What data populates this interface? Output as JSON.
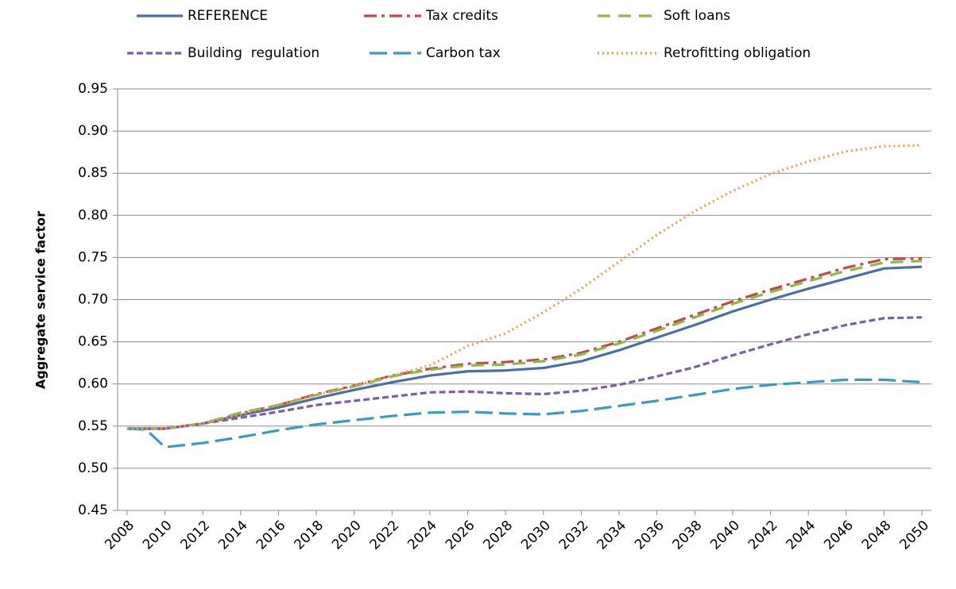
{
  "chart_data": {
    "type": "line",
    "y_label": "Aggregate service factor",
    "x": [
      2008,
      2009,
      2010,
      2012,
      2014,
      2016,
      2018,
      2020,
      2022,
      2024,
      2026,
      2028,
      2030,
      2032,
      2034,
      2036,
      2038,
      2040,
      2042,
      2044,
      2046,
      2048,
      2050
    ],
    "xlim": [
      2007.5,
      2050.5
    ],
    "xticks": [
      2008,
      2010,
      2012,
      2014,
      2016,
      2018,
      2020,
      2022,
      2024,
      2026,
      2028,
      2030,
      2032,
      2034,
      2036,
      2038,
      2040,
      2042,
      2044,
      2046,
      2048,
      2050
    ],
    "ylim": [
      0.45,
      0.95
    ],
    "yticks": [
      {
        "value": 0.45,
        "label": "0.45"
      },
      {
        "value": 0.5,
        "label": "0.50"
      },
      {
        "value": 0.55,
        "label": "0.55"
      },
      {
        "value": 0.6,
        "label": "0.60"
      },
      {
        "value": 0.65,
        "label": "0.65"
      },
      {
        "value": 0.7,
        "label": "0.70"
      },
      {
        "value": 0.75,
        "label": "0.75"
      },
      {
        "value": 0.8,
        "label": "0.80"
      },
      {
        "value": 0.85,
        "label": "0.85"
      },
      {
        "value": 0.9,
        "label": "0.90"
      },
      {
        "value": 0.95,
        "label": "0.95"
      }
    ],
    "grid": true,
    "legend": "top",
    "series": [
      {
        "name": "REFERENCE",
        "color": "#4a6fa5",
        "dash": "none",
        "values": [
          0.547,
          0.547,
          0.547,
          0.553,
          0.563,
          0.572,
          0.583,
          0.593,
          0.602,
          0.61,
          0.615,
          0.616,
          0.619,
          0.627,
          0.64,
          0.655,
          0.67,
          0.686,
          0.7,
          0.713,
          0.725,
          0.737,
          0.739
        ]
      },
      {
        "name": "Tax credits",
        "color": "#be4b48",
        "dash": "16 6 4 6",
        "values": [
          0.547,
          0.547,
          0.547,
          0.553,
          0.565,
          0.575,
          0.588,
          0.598,
          0.61,
          0.618,
          0.624,
          0.626,
          0.629,
          0.637,
          0.65,
          0.666,
          0.682,
          0.698,
          0.712,
          0.725,
          0.738,
          0.748,
          0.749
        ]
      },
      {
        "name": "Soft loans",
        "color": "#8db84a",
        "dash": "16 10",
        "values": [
          0.547,
          0.547,
          0.547,
          0.553,
          0.566,
          0.575,
          0.587,
          0.597,
          0.609,
          0.617,
          0.622,
          0.623,
          0.627,
          0.635,
          0.648,
          0.663,
          0.679,
          0.695,
          0.709,
          0.722,
          0.734,
          0.744,
          0.746
        ]
      },
      {
        "name": "Building  regulation",
        "color": "#7b5ea7",
        "dash": "8 4",
        "values": [
          0.547,
          0.547,
          0.547,
          0.553,
          0.56,
          0.567,
          0.575,
          0.58,
          0.585,
          0.59,
          0.591,
          0.589,
          0.588,
          0.592,
          0.599,
          0.609,
          0.62,
          0.634,
          0.647,
          0.659,
          0.67,
          0.678,
          0.679
        ]
      },
      {
        "name": "Carbon tax",
        "color": "#3a9cbc",
        "dash": "22 8",
        "values": [
          0.547,
          0.546,
          0.525,
          0.53,
          0.537,
          0.545,
          0.552,
          0.557,
          0.562,
          0.566,
          0.567,
          0.565,
          0.564,
          0.568,
          0.574,
          0.58,
          0.587,
          0.594,
          0.599,
          0.602,
          0.605,
          0.605,
          0.602
        ]
      },
      {
        "name": "Retrofitting obligation",
        "color": "#f19a4a",
        "dash": "2 4",
        "values": [
          0.547,
          0.547,
          0.547,
          0.553,
          0.564,
          0.575,
          0.587,
          0.598,
          0.61,
          0.622,
          0.645,
          0.66,
          0.685,
          0.713,
          0.745,
          0.777,
          0.805,
          0.829,
          0.849,
          0.864,
          0.876,
          0.882,
          0.883
        ]
      }
    ]
  }
}
